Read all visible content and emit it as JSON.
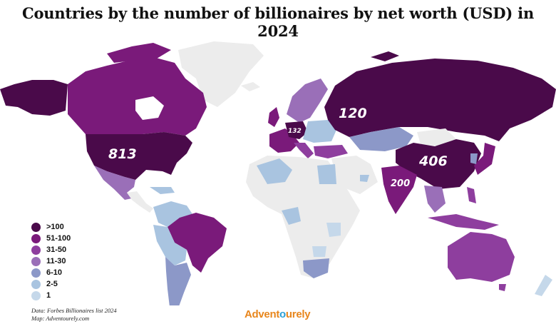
{
  "title": "Countries by the number of billionaires by net worth (USD) in 2024",
  "colors": {
    "gt100": "#4a0a4a",
    "c51_100": "#7a1a7a",
    "c31_50": "#8e3e9e",
    "c11_30": "#9a6fb8",
    "c6_10": "#8c98c8",
    "c2_5": "#a9c4e0",
    "c1": "#c5d8ea",
    "none": "#ececec"
  },
  "legend": [
    {
      "label": ">100",
      "color": "#4a0a4a"
    },
    {
      "label": "51-100",
      "color": "#7a1a7a"
    },
    {
      "label": "31-50",
      "color": "#8e3e9e"
    },
    {
      "label": "11-30",
      "color": "#9a6fb8"
    },
    {
      "label": "6-10",
      "color": "#8c98c8"
    },
    {
      "label": "2-5",
      "color": "#a9c4e0"
    },
    {
      "label": "1",
      "color": "#c5d8ea"
    }
  ],
  "labels": {
    "usa": "813",
    "russia": "120",
    "china": "406",
    "india": "200",
    "germany": "132"
  },
  "source": {
    "line1": "Data: Forbes Billionaires list 2024",
    "line2": "Map: Adventourely.com"
  },
  "logo": {
    "part1": "Advent",
    "part2": "o",
    "part3": "urely"
  }
}
